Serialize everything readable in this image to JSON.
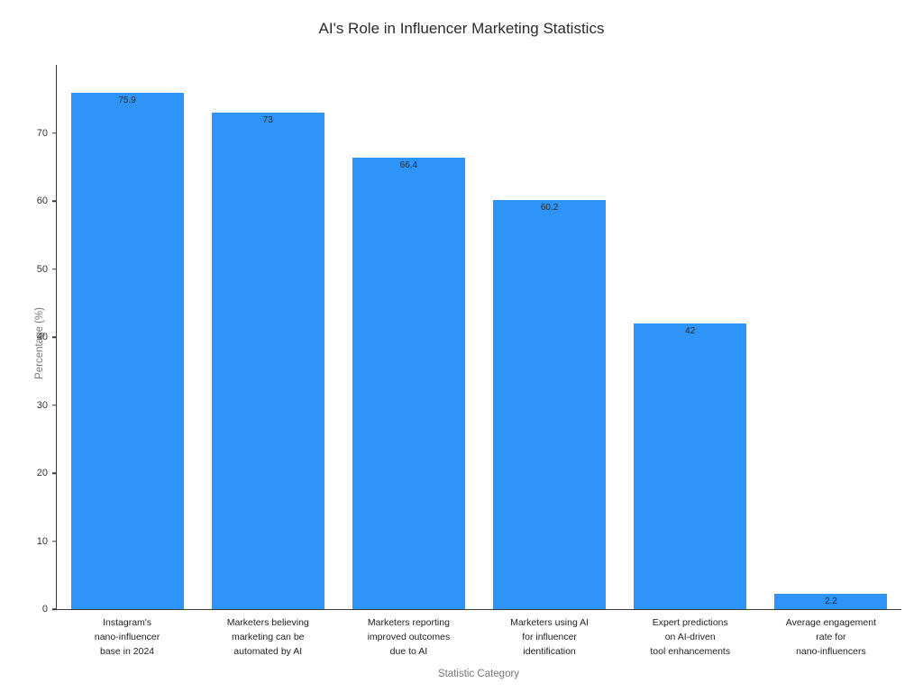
{
  "chart_data": {
    "type": "bar",
    "title": "AI's Role in Influencer Marketing Statistics",
    "xlabel": "Statistic Category",
    "ylabel": "Percentage (%)",
    "categories": [
      "Instagram's nano-influencer base in 2024",
      "Marketers believing marketing can be automated by AI",
      "Marketers reporting improved outcomes due to AI",
      "Marketers using AI for influencer identification",
      "Expert predictions on AI-driven tool enhancements",
      "Average engagement rate for nano-influencers"
    ],
    "category_lines": [
      [
        "Instagram's",
        "nano-influencer",
        "base in 2024"
      ],
      [
        "Marketers believing",
        "marketing can be",
        "automated by AI"
      ],
      [
        "Marketers reporting",
        "improved outcomes",
        "due to AI"
      ],
      [
        "Marketers using AI",
        "for influencer",
        "identification"
      ],
      [
        "Expert predictions",
        "on AI-driven",
        "tool enhancements"
      ],
      [
        "Average engagement",
        "rate for",
        "nano-influencers"
      ]
    ],
    "values": [
      75.9,
      73,
      66.4,
      60.2,
      42,
      2.2
    ],
    "value_labels": [
      "75.9",
      "73",
      "66.4",
      "60.2",
      "42",
      "2.2"
    ],
    "ylim": [
      0,
      80
    ],
    "yticks": [
      0,
      10,
      20,
      30,
      40,
      50,
      60,
      70
    ],
    "bar_color": "#2e94f8",
    "grid": false,
    "legend_position": "none"
  }
}
